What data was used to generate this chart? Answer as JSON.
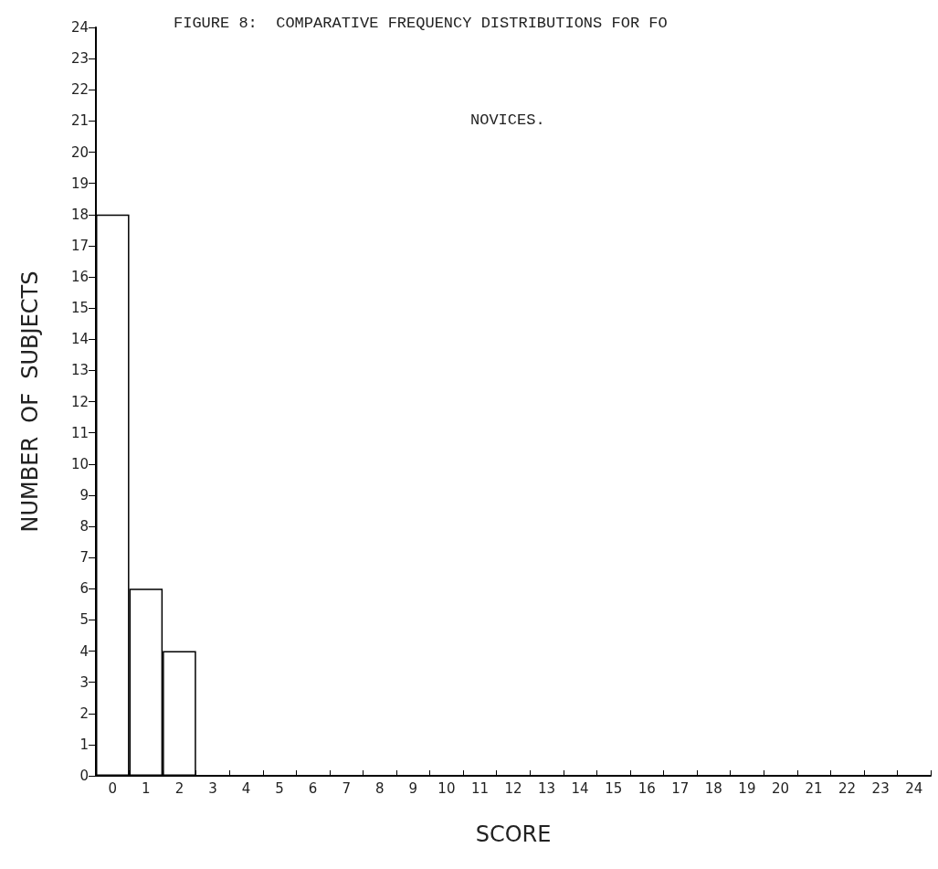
{
  "chart_data": {
    "type": "bar",
    "title": "FIGURE 8:  COMPARATIVE FREQUENCY DISTRIBUTIONS FOR FO",
    "subtitle": "NOVICES.",
    "xlabel": "SCORE",
    "ylabel": "NUMBER  OF  SUBJECTS",
    "categories": [
      "0",
      "1",
      "2",
      "3",
      "4",
      "5",
      "6",
      "7",
      "8",
      "9",
      "10",
      "11",
      "12",
      "13",
      "14",
      "15",
      "16",
      "17",
      "18",
      "19",
      "20",
      "21",
      "22",
      "23",
      "24"
    ],
    "values": [
      18,
      6,
      4,
      0,
      0,
      0,
      0,
      0,
      0,
      0,
      0,
      0,
      0,
      0,
      0,
      0,
      0,
      0,
      0,
      0,
      0,
      0,
      0,
      0,
      0
    ],
    "color": "#ffffff",
    "ylim": [
      0,
      24
    ],
    "yticks": [
      0,
      1,
      2,
      3,
      4,
      5,
      6,
      7,
      8,
      9,
      10,
      11,
      12,
      13,
      14,
      15,
      16,
      17,
      18,
      19,
      20,
      21,
      22,
      23,
      24
    ],
    "grid": false
  }
}
